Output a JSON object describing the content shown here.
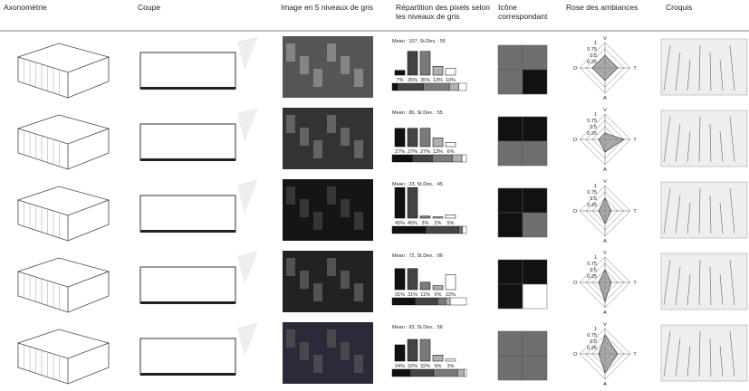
{
  "headers": [
    [
      "Axonométrie"
    ],
    [
      "Coupe"
    ],
    [
      "Image en 5 niveaux de gris"
    ],
    [
      "Répartition des pixels selon",
      "les niveaux de gris"
    ],
    [
      "Icône",
      "correspondant"
    ],
    [
      "Rose des ambiances"
    ],
    [
      "Croquis"
    ]
  ],
  "gray_levels": [
    "#111111",
    "#444444",
    "#7a7a7a",
    "#b0b0b0",
    "#ffffff"
  ],
  "rose": {
    "axes": [
      "V",
      "T",
      "A",
      "O"
    ],
    "ticks": [
      0.25,
      0.5,
      0.75,
      1
    ]
  },
  "rows": [
    {
      "stats": "Mean : 107, St.Dev. : 55",
      "histogram": {
        "values": [
          7,
          35,
          35,
          13,
          10
        ],
        "value_labels": [
          "7%",
          "35%",
          "35%",
          "13%",
          "10%"
        ]
      },
      "icon": [
        "#6e6e6e",
        "#6e6e6e",
        "#6e6e6e",
        "#111111"
      ],
      "rose_values": [
        0.5,
        0.5,
        0.5,
        0.5
      ]
    },
    {
      "stats": "Mean : 86,  St.Dev. : 55",
      "histogram": {
        "values": [
          27,
          27,
          27,
          13,
          6
        ],
        "value_labels": [
          "27%",
          "27%",
          "27%",
          "13%",
          "6%"
        ]
      },
      "icon": [
        "#111111",
        "#111111",
        "#6e6e6e",
        "#6e6e6e"
      ],
      "rose_values": [
        0.25,
        0.75,
        0.5,
        0.25
      ]
    },
    {
      "stats": "Mean : 23, St.Dev. : 45",
      "histogram": {
        "values": [
          45,
          45,
          3,
          2,
          5
        ],
        "value_labels": [
          "45%",
          "45%",
          "3%",
          "2%",
          "5%"
        ]
      },
      "icon": [
        "#111111",
        "#111111",
        "#111111",
        "#6e6e6e"
      ],
      "rose_values": [
        0.5,
        0.25,
        0.5,
        0.25
      ]
    },
    {
      "stats": "Mean : 72, St.Dev. : 96",
      "histogram": {
        "values": [
          31,
          31,
          11,
          6,
          22
        ],
        "value_labels": [
          "31%",
          "31%",
          "11%",
          "6%",
          "22%"
        ]
      },
      "icon": [
        "#111111",
        "#111111",
        "#111111",
        "#ffffff"
      ],
      "rose_values": [
        0.5,
        0.25,
        0.75,
        0.25
      ]
    },
    {
      "stats": "Mean : 93, St.Dev. : 56",
      "histogram": {
        "values": [
          24,
          32,
          32,
          9,
          3
        ],
        "value_labels": [
          "24%",
          "32%",
          "32%",
          "9%",
          "3%"
        ]
      },
      "icon": [
        "#6e6e6e",
        "#6e6e6e",
        "#6e6e6e",
        "#6e6e6e"
      ],
      "rose_values": [
        0.75,
        0.5,
        0.75,
        0.25
      ]
    }
  ]
}
